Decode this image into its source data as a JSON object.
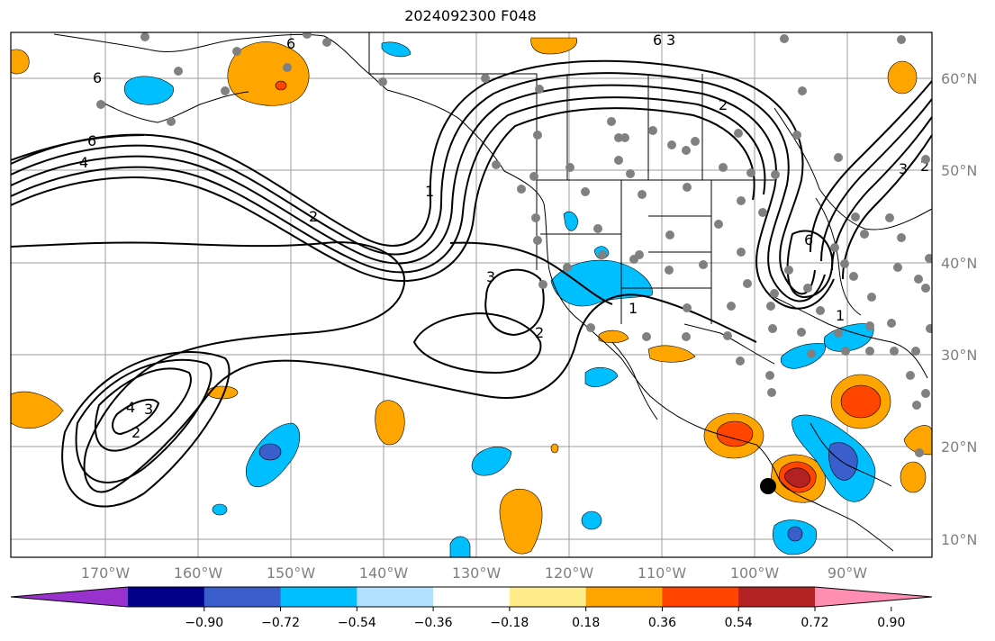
{
  "title": "2024092300 F048",
  "map": {
    "lon_labels": [
      "170°W",
      "160°W",
      "150°W",
      "140°W",
      "130°W",
      "120°W",
      "110°W",
      "100°W",
      "90°W"
    ],
    "lat_labels": [
      "60°N",
      "50°N",
      "40°N",
      "30°N",
      "20°N",
      "10°N"
    ],
    "contour_labels": [
      "6",
      "6",
      "6",
      "4",
      "2",
      "1",
      "2",
      "3",
      "3",
      "2",
      "1",
      "6",
      "4",
      "2",
      "3",
      "2",
      "6",
      "3",
      "1"
    ]
  },
  "colorbar": {
    "tick_labels": [
      "−0.90",
      "−0.72",
      "−0.54",
      "−0.36",
      "−0.18",
      "0.18",
      "0.36",
      "0.54",
      "0.72",
      "0.90"
    ],
    "colors": [
      "#9932cc",
      "#00008b",
      "#3a5fcd",
      "#00bfff",
      "#b0e2ff",
      "#ffffff",
      "#ffec8b",
      "#ffa500",
      "#ff4500",
      "#b22222",
      "#ff8eb2"
    ]
  }
}
